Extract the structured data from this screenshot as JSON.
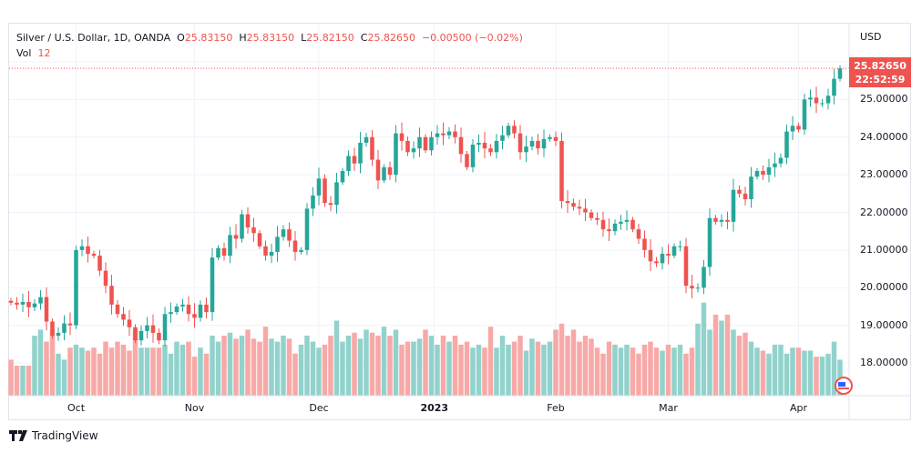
{
  "legend": {
    "symbol": "Silver / U.S. Dollar, 1D, OANDA",
    "o_label": "O",
    "o": "25.83150",
    "h_label": "H",
    "h": "25.83150",
    "l_label": "L",
    "l": "25.82150",
    "c_label": "C",
    "c": "25.82650",
    "change": "−0.00500 (−0.02%)",
    "vol_label": "Vol",
    "vol": "12"
  },
  "price_axis": {
    "currency": "USD",
    "ticks": [
      "26.00000",
      "25.00000",
      "24.00000",
      "23.00000",
      "22.00000",
      "21.00000",
      "20.00000",
      "19.00000",
      "18.00000"
    ],
    "last_price": "25.82650",
    "countdown": "22:52:59"
  },
  "time_axis": {
    "ticks": [
      {
        "label": "Oct",
        "bold": false,
        "index": 11
      },
      {
        "label": "Nov",
        "bold": false,
        "index": 31
      },
      {
        "label": "Dec",
        "bold": false,
        "index": 52
      },
      {
        "label": "2023",
        "bold": true,
        "index": 71.5
      },
      {
        "label": "Feb",
        "bold": false,
        "index": 92
      },
      {
        "label": "Mar",
        "bold": false,
        "index": 111
      },
      {
        "label": "Apr",
        "bold": false,
        "index": 133
      }
    ]
  },
  "branding": {
    "name": "TradingView"
  },
  "colors": {
    "up": "#26a69a",
    "down": "#ef5350",
    "vol_up": "#92d2cc",
    "vol_down": "#f7a9a7",
    "grid": "#f0f3fa"
  },
  "chart_data": {
    "type": "candlestick",
    "title": "Silver / U.S. Dollar, 1D, OANDA",
    "ylim": [
      17.2,
      26.6
    ],
    "first_open": 19.65,
    "closes": [
      19.6,
      19.55,
      19.62,
      19.48,
      19.58,
      19.75,
      19.1,
      18.72,
      18.8,
      19.05,
      19.0,
      21.0,
      21.1,
      20.9,
      20.85,
      20.45,
      20.05,
      19.55,
      19.3,
      19.15,
      18.95,
      18.6,
      18.85,
      19.0,
      18.8,
      18.6,
      19.3,
      19.35,
      19.5,
      19.55,
      19.3,
      19.2,
      19.55,
      19.35,
      20.8,
      21.05,
      20.85,
      21.4,
      21.3,
      21.95,
      21.6,
      21.45,
      21.1,
      20.85,
      20.95,
      21.35,
      21.55,
      21.25,
      20.95,
      21.0,
      22.1,
      22.45,
      22.9,
      22.25,
      22.2,
      22.8,
      23.1,
      23.5,
      23.3,
      23.85,
      24.0,
      23.4,
      22.85,
      23.2,
      23.0,
      24.1,
      23.9,
      23.6,
      23.7,
      24.0,
      23.65,
      24.0,
      24.1,
      24.05,
      24.15,
      24.0,
      23.55,
      23.2,
      23.8,
      23.85,
      23.7,
      23.6,
      23.9,
      24.05,
      24.3,
      24.1,
      23.6,
      23.75,
      23.9,
      23.7,
      23.95,
      24.0,
      23.9,
      22.3,
      22.25,
      22.15,
      22.1,
      22.0,
      21.85,
      21.8,
      21.55,
      21.5,
      21.7,
      21.75,
      21.8,
      21.55,
      21.3,
      21.0,
      20.7,
      20.65,
      20.9,
      20.85,
      21.1,
      21.1,
      20.05,
      19.98,
      20.0,
      20.55,
      21.85,
      21.75,
      21.8,
      21.75,
      22.6,
      22.5,
      22.35,
      22.95,
      23.1,
      23.0,
      23.2,
      23.3,
      23.45,
      24.15,
      24.3,
      24.2,
      25.0,
      25.05,
      24.9,
      24.9,
      25.1,
      25.55,
      25.8265
    ],
    "volumes": [
      12,
      10,
      10,
      10,
      20,
      22,
      18,
      22,
      14,
      12,
      16,
      17,
      16,
      15,
      16,
      14,
      18,
      16,
      18,
      17,
      15,
      22,
      16,
      16,
      16,
      16,
      17,
      14,
      18,
      17,
      18,
      13,
      16,
      14,
      20,
      18,
      20,
      21,
      19,
      20,
      22,
      19,
      18,
      23,
      19,
      18,
      20,
      19,
      14,
      17,
      20,
      18,
      16,
      17,
      20,
      25,
      18,
      20,
      21,
      19,
      22,
      21,
      20,
      23,
      20,
      22,
      17,
      18,
      18,
      19,
      22,
      20,
      17,
      20,
      18,
      20,
      17,
      18,
      16,
      17,
      16,
      23,
      16,
      20,
      17,
      18,
      20,
      15,
      19,
      18,
      17,
      18,
      22,
      24,
      20,
      22,
      18,
      20,
      19,
      16,
      14,
      18,
      17,
      16,
      17,
      16,
      14,
      17,
      18,
      16,
      15,
      17,
      16,
      17,
      14,
      16,
      24,
      31,
      22,
      27,
      25,
      27,
      22,
      20,
      21,
      18,
      16,
      15,
      14,
      17,
      17,
      14,
      16,
      16,
      15,
      15,
      13,
      13,
      14,
      18,
      12
    ]
  }
}
